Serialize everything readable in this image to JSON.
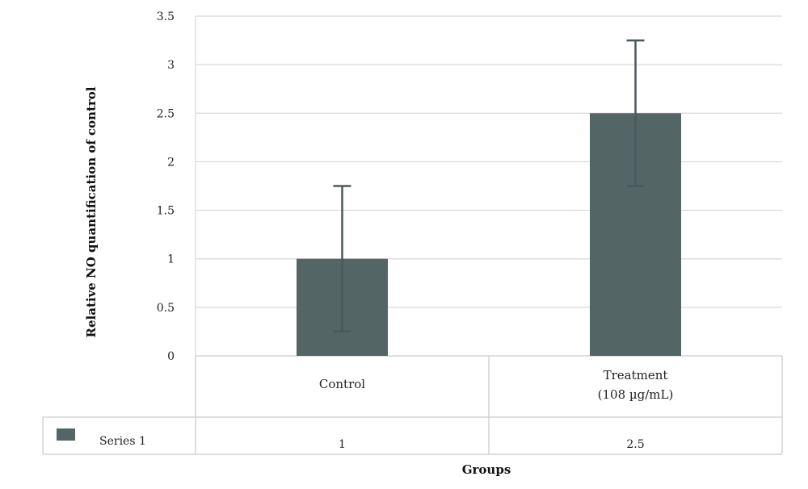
{
  "chart_data": {
    "type": "bar",
    "categories": [
      "Control",
      "Treatment (108 µg/mL)"
    ],
    "category_lines": [
      [
        "Control"
      ],
      [
        "Treatment",
        "(108 µg/mL)"
      ]
    ],
    "series": [
      {
        "name": "Series 1",
        "values": [
          1,
          2.5
        ],
        "error": [
          0.75,
          0.75
        ],
        "color": "#546566"
      }
    ],
    "table_values": [
      "1",
      "2.5"
    ],
    "xlabel": "Groups",
    "ylabel": "Relative NO quantification of control",
    "ylim": [
      0,
      3.5
    ],
    "yticks": [
      0,
      0.5,
      1,
      1.5,
      2,
      2.5,
      3,
      3.5
    ],
    "grid": true,
    "legend": "data-table"
  },
  "colors": {
    "bar": "#546566",
    "error_bar": "#4a5a5b",
    "grid": "#d8d8d8",
    "table_border": "#d3d3d3"
  }
}
